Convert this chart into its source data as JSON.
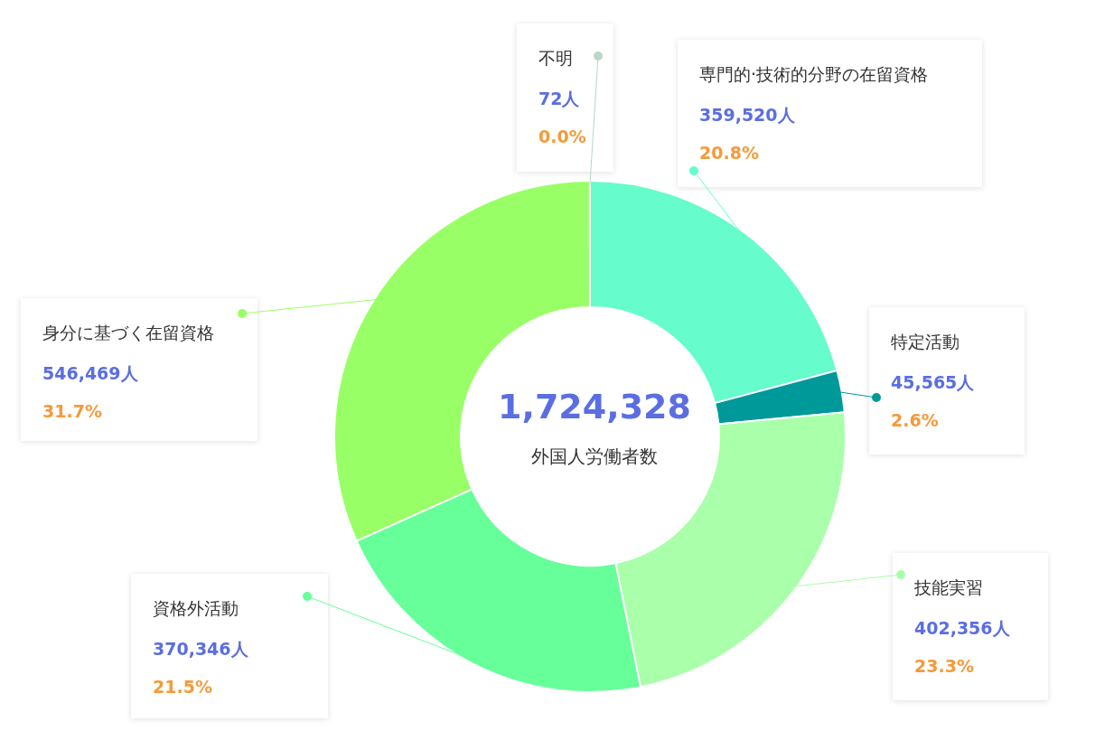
{
  "chart_data": {
    "type": "donut",
    "categories": [
      "専門的·技術的分野の在留資格",
      "特定活動",
      "技能実習",
      "資格外活動",
      "身分に基づく在留資格",
      "不明"
    ],
    "values": [
      359520,
      45565,
      402356,
      370346,
      546469,
      72
    ],
    "colors": [
      "#66fccc",
      "#009999",
      "#aaffaa",
      "#66ff99",
      "#99ff66",
      "#b8d8c8"
    ],
    "value_labels": [
      "359,520人\n20.8%",
      "45,565人\n2.6%",
      "402,356人\n23.3%",
      "370,346人\n21.5%",
      "546,469人\n31.7%",
      "72人\n0.0%"
    ],
    "annotations": [
      "1,724,328",
      "外国人労働者数"
    ]
  }
}
